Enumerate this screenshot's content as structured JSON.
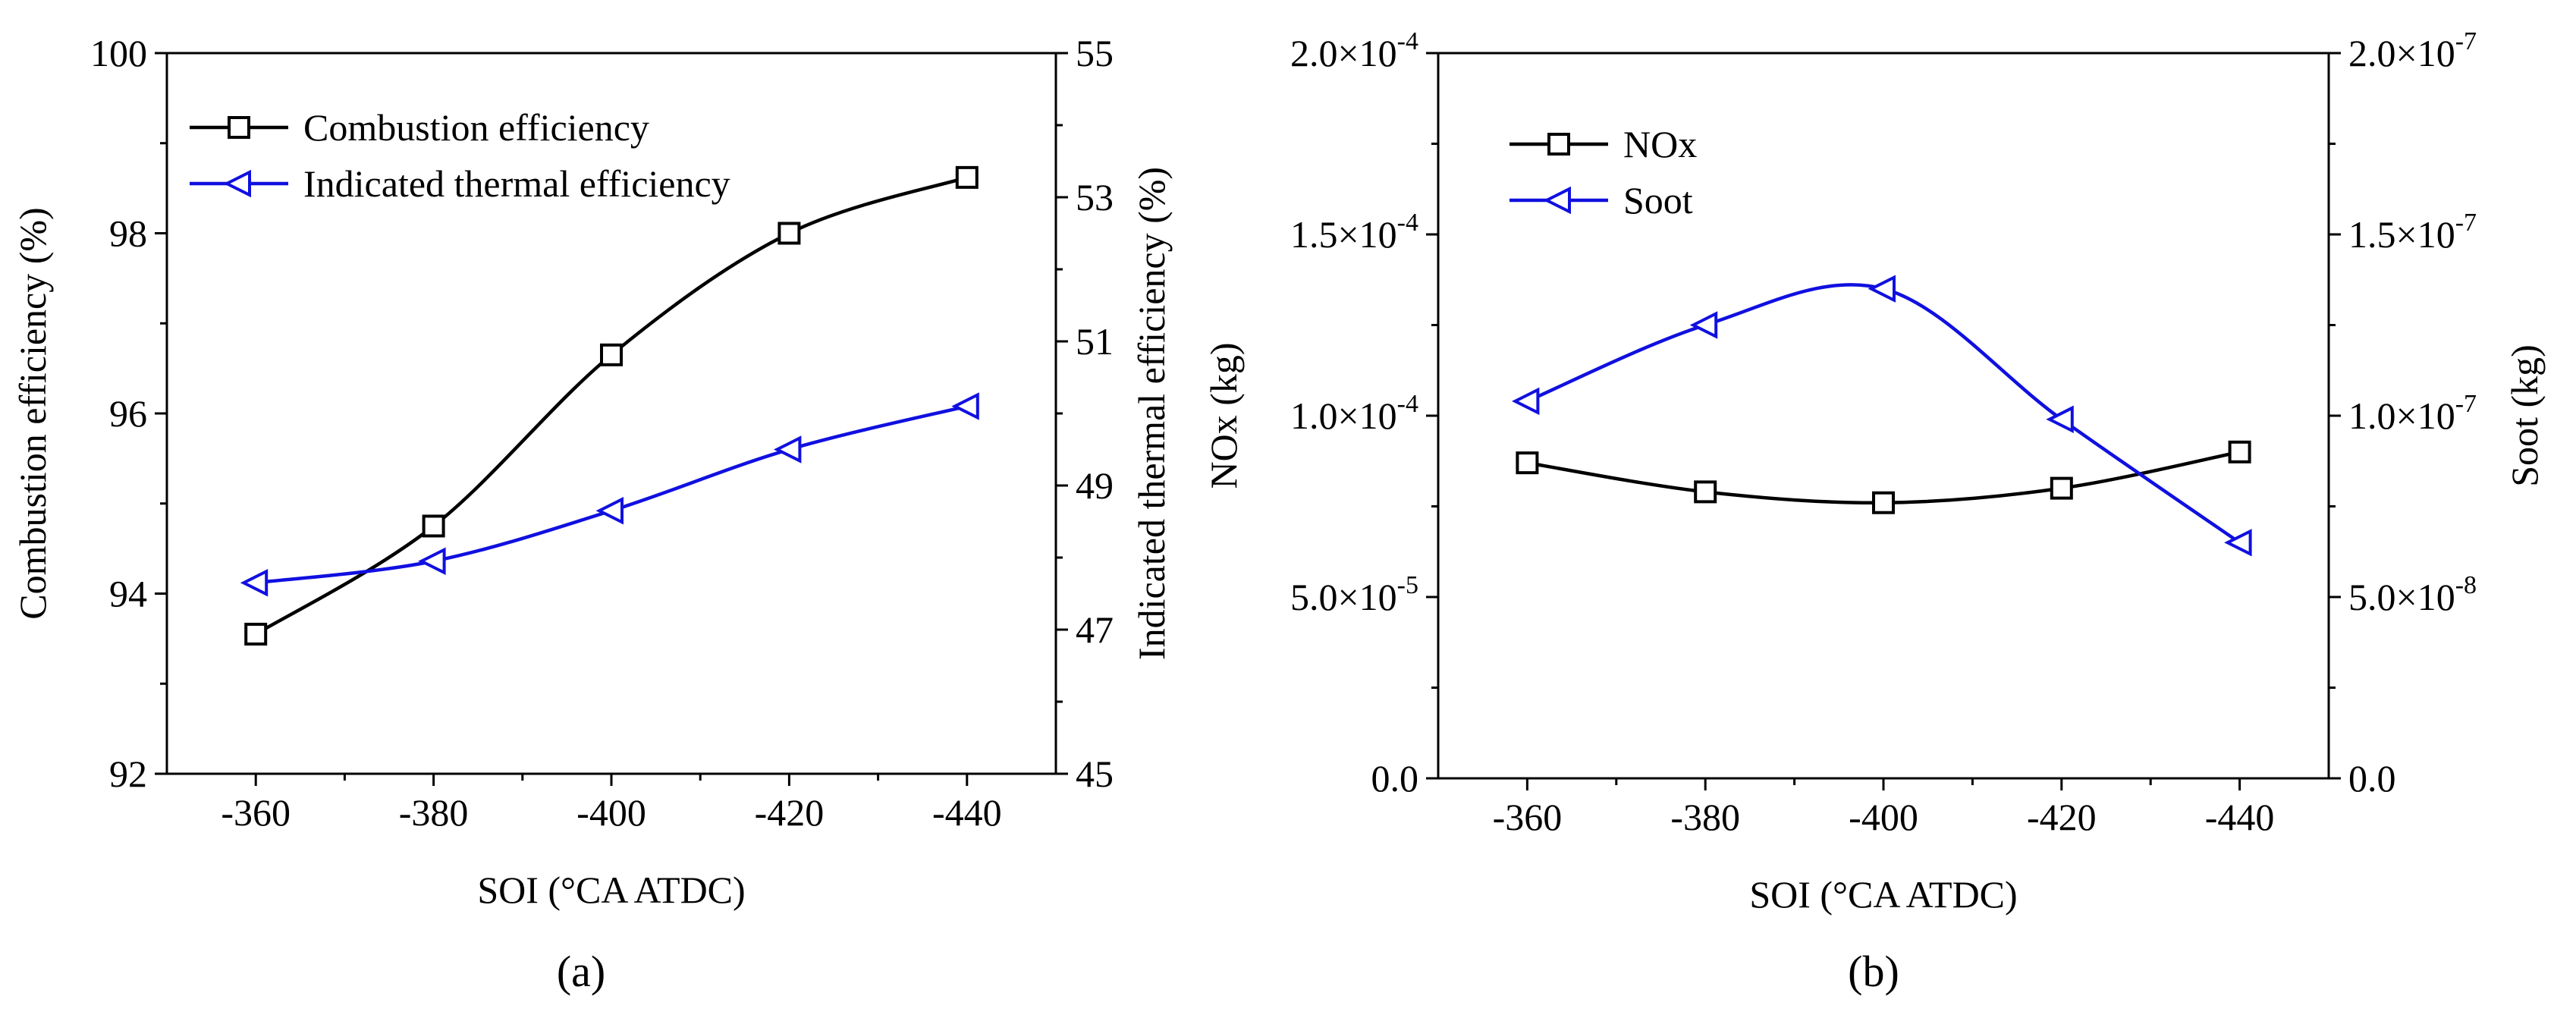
{
  "chart_data": [
    {
      "type": "line",
      "panel_label": "(a)",
      "xlabel": "SOI (°CA ATDC)",
      "x": [
        -360,
        -380,
        -400,
        -420,
        -440
      ],
      "x_ticks": [
        "-360",
        "-380",
        "-400",
        "-420",
        "-440"
      ],
      "xlim": [
        -350,
        -450
      ],
      "ylabel_left": "Combustion efficiency (%)",
      "ylim_left": [
        92,
        100
      ],
      "yticks_left": [
        "92",
        "94",
        "96",
        "98",
        "100"
      ],
      "ylabel_right": "Indicated thermal efficiency (%)",
      "ylim_right": [
        45,
        55
      ],
      "yticks_right": [
        "45",
        "47",
        "49",
        "51",
        "53",
        "55"
      ],
      "legend_position": "top-left",
      "series": [
        {
          "name": "Combustion efficiency",
          "axis": "left",
          "marker": "square",
          "color": "#000000",
          "values": [
            93.55,
            94.75,
            96.65,
            98.0,
            98.62
          ]
        },
        {
          "name": "Indicated thermal efficiency",
          "axis": "right",
          "marker": "triangle-left",
          "color": "#1010e0",
          "values": [
            47.65,
            47.95,
            48.65,
            49.5,
            50.1
          ]
        }
      ]
    },
    {
      "type": "line",
      "panel_label": "(b)",
      "xlabel": "SOI (°CA ATDC)",
      "x": [
        -360,
        -380,
        -400,
        -420,
        -440
      ],
      "x_ticks": [
        "-360",
        "-380",
        "-400",
        "-420",
        "-440"
      ],
      "xlim": [
        -350,
        -450
      ],
      "ylabel_left": "NOx (kg)",
      "ylim_left": [
        0,
        0.0002
      ],
      "yticks_left": [
        {
          "mant": "0.0",
          "exp": ""
        },
        {
          "mant": "5.0",
          "exp": "-5"
        },
        {
          "mant": "1.0",
          "exp": "-4"
        },
        {
          "mant": "1.5",
          "exp": "-4"
        },
        {
          "mant": "2.0",
          "exp": "-4"
        }
      ],
      "ylabel_right": "Soot (kg)",
      "ylim_right": [
        0,
        2e-07
      ],
      "yticks_right": [
        {
          "mant": "0.0",
          "exp": ""
        },
        {
          "mant": "5.0",
          "exp": "-8"
        },
        {
          "mant": "1.0",
          "exp": "-7"
        },
        {
          "mant": "1.5",
          "exp": "-7"
        },
        {
          "mant": "2.0",
          "exp": "-7"
        }
      ],
      "legend_position": "top-left",
      "series": [
        {
          "name": "NOx",
          "axis": "left",
          "marker": "square",
          "color": "#000000",
          "values": [
            8.7e-05,
            7.9e-05,
            7.6e-05,
            8e-05,
            9e-05
          ]
        },
        {
          "name": "Soot",
          "axis": "right",
          "marker": "triangle-left",
          "color": "#1010e0",
          "values": [
            1.04e-07,
            1.25e-07,
            1.35e-07,
            9.9e-08,
            6.5e-08
          ]
        }
      ]
    }
  ]
}
